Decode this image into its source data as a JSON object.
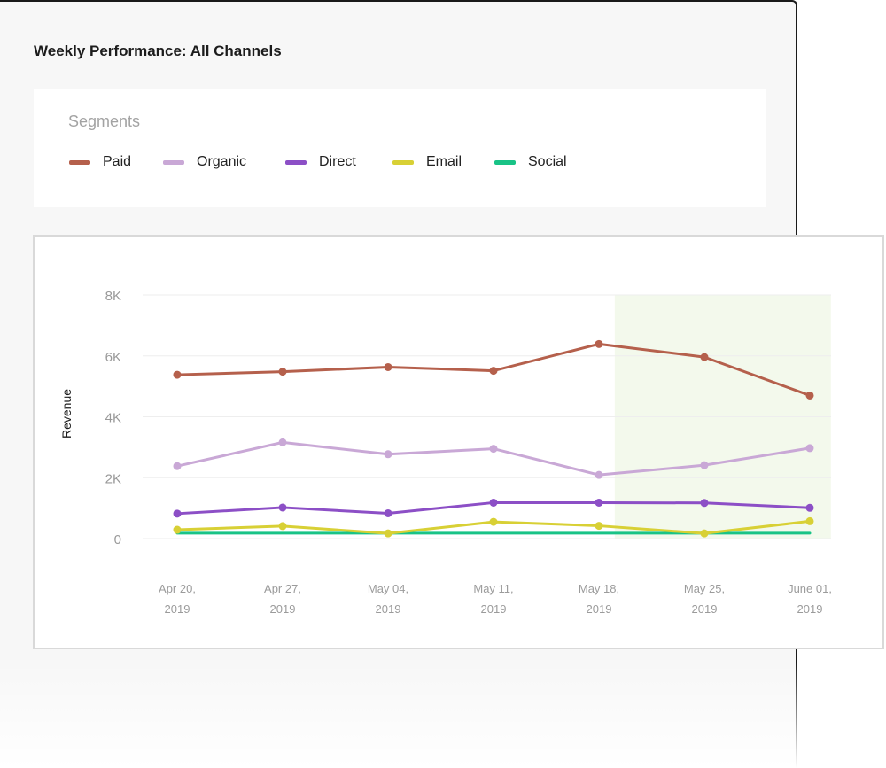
{
  "page": {
    "title": "Weekly Performance: All Channels"
  },
  "legend": {
    "heading": "Segments",
    "items": [
      {
        "label": "Paid",
        "color": "#b5604c"
      },
      {
        "label": "Organic",
        "color": "#c9a8d6"
      },
      {
        "label": "Direct",
        "color": "#8c4fc6"
      },
      {
        "label": "Email",
        "color": "#d8d035"
      },
      {
        "label": "Social",
        "color": "#19c386"
      }
    ]
  },
  "chart_data": {
    "type": "line",
    "ylabel": "Revenue",
    "xlabel": "",
    "ylim": [
      0,
      8000
    ],
    "yticks": [
      {
        "value": 0,
        "label": "0"
      },
      {
        "value": 2000,
        "label": "2K"
      },
      {
        "value": 4000,
        "label": "4K"
      },
      {
        "value": 6000,
        "label": "6K"
      },
      {
        "value": 8000,
        "label": "8K"
      }
    ],
    "categories": [
      [
        "Apr 20,",
        "2019"
      ],
      [
        "Apr 27,",
        "2019"
      ],
      [
        "May 04,",
        "2019"
      ],
      [
        "May 11,",
        "2019"
      ],
      [
        "May 18,",
        "2019"
      ],
      [
        "May 25,",
        "2019"
      ],
      [
        "June 01,",
        "2019"
      ]
    ],
    "highlight_region": {
      "from_index": 4.15,
      "to_index": 6.2,
      "color": "#f3f9ec"
    },
    "grid": true,
    "series": [
      {
        "name": "Paid",
        "color": "#b5604c",
        "values": [
          5380,
          5480,
          5630,
          5510,
          6390,
          5960,
          4700
        ],
        "markers": true
      },
      {
        "name": "Organic",
        "color": "#c9a8d6",
        "values": [
          2380,
          3160,
          2770,
          2950,
          2090,
          2410,
          2970
        ],
        "markers": true
      },
      {
        "name": "Direct",
        "color": "#8c4fc6",
        "values": [
          820,
          1020,
          830,
          1180,
          1180,
          1170,
          1010
        ],
        "markers": true
      },
      {
        "name": "Email",
        "color": "#d8d035",
        "values": [
          290,
          410,
          170,
          550,
          420,
          170,
          570
        ],
        "markers": true
      },
      {
        "name": "Social",
        "color": "#19c386",
        "values": [
          180,
          180,
          180,
          180,
          180,
          180,
          180
        ],
        "markers": false
      }
    ]
  }
}
